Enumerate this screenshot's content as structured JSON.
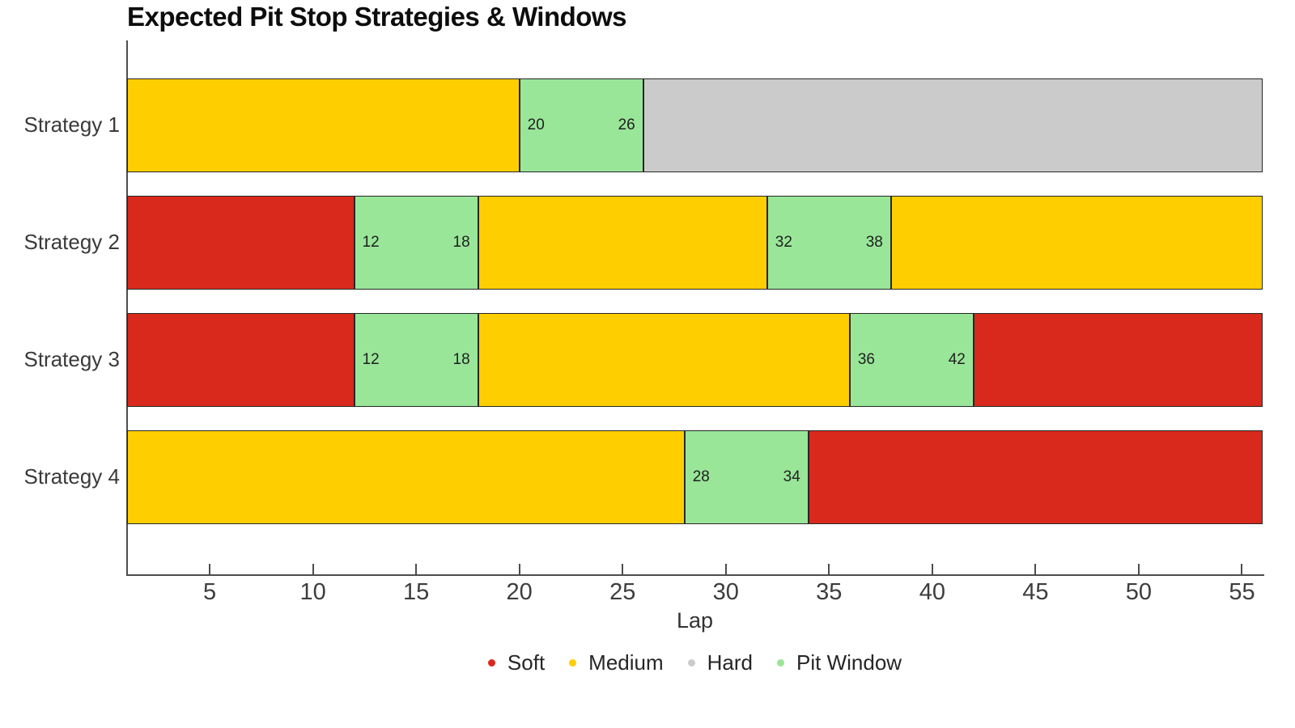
{
  "title": "Expected Pit Stop Strategies & Windows",
  "chart_data": {
    "type": "bar",
    "subtype": "horizontal-stacked-gantt",
    "title": "Expected Pit Stop Strategies & Windows",
    "xlabel": "Lap",
    "xlim": [
      1,
      56
    ],
    "xticks": [
      5,
      10,
      15,
      20,
      25,
      30,
      35,
      40,
      45,
      50,
      55
    ],
    "grid": false,
    "legend_position": "bottom-center",
    "categories": [
      "Strategy 1",
      "Strategy 2",
      "Strategy 3",
      "Strategy 4"
    ],
    "colors": {
      "Soft": "#d9291d",
      "Medium": "#ffce00",
      "Hard": "#cbcbcb",
      "Pit Window": "#99e699"
    },
    "axis_color": "#4d4d4d",
    "segment_border_color": "#262626",
    "legend": [
      {
        "label": "Soft",
        "color": "#d9291d"
      },
      {
        "label": "Medium",
        "color": "#ffce00"
      },
      {
        "label": "Hard",
        "color": "#cbcbcb"
      },
      {
        "label": "Pit Window",
        "color": "#99e699"
      }
    ],
    "rows": [
      {
        "name": "Strategy 1",
        "segments": [
          {
            "type": "Medium",
            "start": 1,
            "end": 20
          },
          {
            "type": "Pit Window",
            "start": 20,
            "end": 26,
            "start_label": "20",
            "end_label": "26"
          },
          {
            "type": "Hard",
            "start": 26,
            "end": 56
          }
        ]
      },
      {
        "name": "Strategy 2",
        "segments": [
          {
            "type": "Soft",
            "start": 1,
            "end": 12
          },
          {
            "type": "Pit Window",
            "start": 12,
            "end": 18,
            "start_label": "12",
            "end_label": "18"
          },
          {
            "type": "Medium",
            "start": 18,
            "end": 32
          },
          {
            "type": "Pit Window",
            "start": 32,
            "end": 38,
            "start_label": "32",
            "end_label": "38"
          },
          {
            "type": "Medium",
            "start": 38,
            "end": 56
          }
        ]
      },
      {
        "name": "Strategy 3",
        "segments": [
          {
            "type": "Soft",
            "start": 1,
            "end": 12
          },
          {
            "type": "Pit Window",
            "start": 12,
            "end": 18,
            "start_label": "12",
            "end_label": "18"
          },
          {
            "type": "Medium",
            "start": 18,
            "end": 36
          },
          {
            "type": "Pit Window",
            "start": 36,
            "end": 42,
            "start_label": "36",
            "end_label": "42"
          },
          {
            "type": "Soft",
            "start": 42,
            "end": 56
          }
        ]
      },
      {
        "name": "Strategy 4",
        "segments": [
          {
            "type": "Medium",
            "start": 1,
            "end": 28
          },
          {
            "type": "Pit Window",
            "start": 28,
            "end": 34,
            "start_label": "28",
            "end_label": "34"
          },
          {
            "type": "Soft",
            "start": 34,
            "end": 56
          }
        ]
      }
    ]
  }
}
